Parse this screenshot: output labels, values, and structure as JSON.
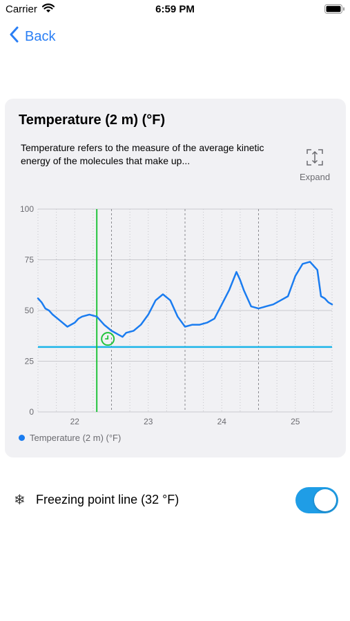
{
  "status_bar": {
    "carrier": "Carrier",
    "time": "6:59 PM"
  },
  "nav": {
    "back_label": "Back"
  },
  "card": {
    "title": "Temperature (2 m) (°F)",
    "description": "Temperature refers to the measure of the average kinetic energy of the molecules that make up...",
    "expand_label": "Expand"
  },
  "colors": {
    "series": "#1a7cf0",
    "freezing_line": "#1ab4e8",
    "cursor_line": "#22c33c",
    "toggle_on": "#1f9de6"
  },
  "chart_data": {
    "type": "line",
    "title": "",
    "xlabel": "",
    "ylabel": "",
    "x_ticks": [
      "22",
      "23",
      "24",
      "25"
    ],
    "y_ticks": [
      "0",
      "25",
      "50",
      "75",
      "100"
    ],
    "ylim": [
      0,
      100
    ],
    "grid": true,
    "legend": "bottom-left",
    "freezing_point": 32,
    "series": [
      {
        "name": "Temperature (2 m) (°F)",
        "x": [
          21.5,
          21.55,
          21.6,
          21.65,
          21.7,
          21.8,
          21.9,
          22.0,
          22.05,
          22.1,
          22.2,
          22.3,
          22.35,
          22.4,
          22.5,
          22.6,
          22.65,
          22.7,
          22.8,
          22.9,
          23.0,
          23.1,
          23.2,
          23.3,
          23.4,
          23.5,
          23.6,
          23.7,
          23.8,
          23.9,
          24.0,
          24.1,
          24.2,
          24.25,
          24.3,
          24.4,
          24.5,
          24.6,
          24.7,
          24.8,
          24.9,
          25.0,
          25.1,
          25.2,
          25.3,
          25.35,
          25.4,
          25.45,
          25.5
        ],
        "values": [
          56,
          54,
          51,
          50,
          48,
          45,
          42,
          44,
          46,
          47,
          48,
          47,
          45,
          43,
          40,
          38,
          37,
          39,
          40,
          43,
          48,
          55,
          58,
          55,
          47,
          42,
          43,
          43,
          44,
          46,
          53,
          60,
          69,
          65,
          60,
          52,
          51,
          52,
          53,
          55,
          57,
          67,
          73,
          74,
          70,
          57,
          56,
          54,
          53
        ]
      }
    ]
  },
  "settings": {
    "freezing_label": "Freezing point line (32 °F)",
    "freezing_enabled": true
  }
}
